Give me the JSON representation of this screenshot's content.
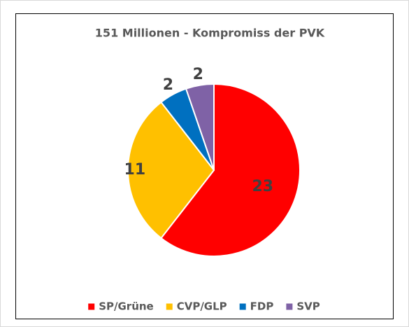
{
  "chart_data": {
    "type": "pie",
    "title": "151 Millionen - Kompromiss der PVK",
    "categories": [
      "SP/Grüne",
      "CVP/GLP",
      "FDP",
      "SVP"
    ],
    "values": [
      23,
      11,
      2,
      2
    ],
    "colors": [
      "#ff0000",
      "#ffc000",
      "#0070c0",
      "#7f62a6"
    ],
    "legend": "bottom"
  }
}
